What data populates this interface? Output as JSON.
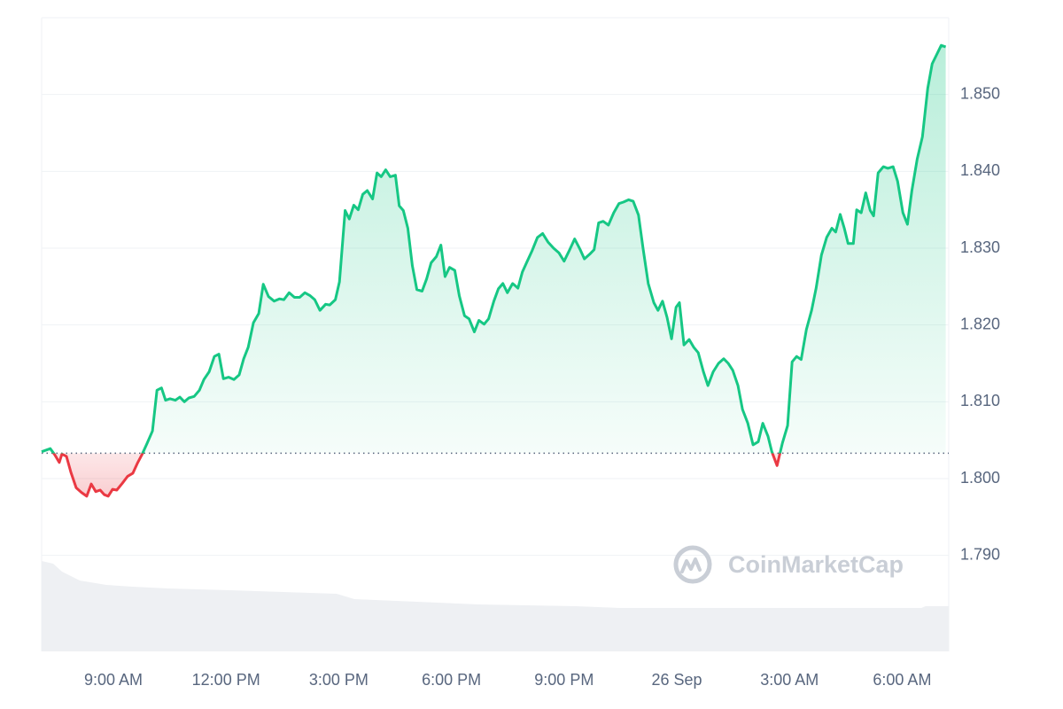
{
  "chart_data": {
    "type": "line",
    "watermark": "CoinMarketCap",
    "up_color": "#16c784",
    "down_color": "#ea3943",
    "grid": true,
    "baseline": 1.8033,
    "xlim": [
      7.09,
      31.24
    ],
    "xticks": [
      {
        "value": 9,
        "label": "9:00 AM"
      },
      {
        "value": 12,
        "label": "12:00 PM"
      },
      {
        "value": 15,
        "label": "3:00 PM"
      },
      {
        "value": 18,
        "label": "6:00 PM"
      },
      {
        "value": 21,
        "label": "9:00 PM"
      },
      {
        "value": 24,
        "label": "26 Sep"
      },
      {
        "value": 27,
        "label": "3:00 AM"
      },
      {
        "value": 30,
        "label": "6:00 AM"
      }
    ],
    "ylim": [
      1.7775,
      1.86
    ],
    "yticks": [
      {
        "value": 1.79,
        "label": "1.790"
      },
      {
        "value": 1.8,
        "label": "1.800"
      },
      {
        "value": 1.81,
        "label": "1.810"
      },
      {
        "value": 1.82,
        "label": "1.820"
      },
      {
        "value": 1.83,
        "label": "1.830"
      },
      {
        "value": 1.84,
        "label": "1.840"
      },
      {
        "value": 1.85,
        "label": "1.850"
      }
    ],
    "x": [
      7.09,
      7.32,
      7.44,
      7.56,
      7.63,
      7.75,
      7.87,
      8.01,
      8.15,
      8.29,
      8.41,
      8.53,
      8.65,
      8.76,
      8.86,
      8.98,
      9.09,
      9.24,
      9.38,
      9.52,
      9.64,
      9.76,
      9.9,
      10.04,
      10.16,
      10.28,
      10.39,
      10.51,
      10.65,
      10.77,
      10.89,
      11.01,
      11.15,
      11.29,
      11.41,
      11.55,
      11.69,
      11.81,
      11.93,
      12.07,
      12.21,
      12.35,
      12.47,
      12.59,
      12.73,
      12.87,
      12.99,
      13.13,
      13.28,
      13.42,
      13.54,
      13.68,
      13.82,
      13.96,
      14.1,
      14.24,
      14.36,
      14.5,
      14.65,
      14.76,
      14.91,
      15.02,
      15.17,
      15.28,
      15.4,
      15.52,
      15.64,
      15.76,
      15.9,
      16.02,
      16.13,
      16.25,
      16.37,
      16.51,
      16.61,
      16.72,
      16.84,
      16.96,
      17.08,
      17.22,
      17.34,
      17.46,
      17.6,
      17.72,
      17.83,
      17.95,
      18.09,
      18.21,
      18.35,
      18.47,
      18.61,
      18.73,
      18.87,
      18.99,
      19.13,
      19.25,
      19.37,
      19.49,
      19.63,
      19.77,
      19.89,
      20.01,
      20.15,
      20.29,
      20.43,
      20.57,
      20.72,
      20.86,
      21.0,
      21.14,
      21.28,
      21.42,
      21.54,
      21.68,
      21.8,
      21.92,
      22.04,
      22.18,
      22.32,
      22.46,
      22.58,
      22.72,
      22.84,
      22.98,
      23.1,
      23.24,
      23.39,
      23.5,
      23.62,
      23.74,
      23.86,
      23.98,
      24.07,
      24.19,
      24.33,
      24.45,
      24.57,
      24.71,
      24.83,
      24.97,
      25.11,
      25.25,
      25.37,
      25.49,
      25.63,
      25.75,
      25.89,
      26.03,
      26.17,
      26.29,
      26.43,
      26.53,
      26.67,
      26.81,
      26.95,
      27.07,
      27.19,
      27.31,
      27.45,
      27.59,
      27.71,
      27.85,
      27.99,
      28.13,
      28.23,
      28.35,
      28.46,
      28.56,
      28.7,
      28.79,
      28.91,
      29.03,
      29.15,
      29.24,
      29.36,
      29.5,
      29.62,
      29.76,
      29.88,
      30.02,
      30.14,
      30.26,
      30.4,
      30.54,
      30.68,
      30.8,
      30.92,
      31.04,
      31.16
    ],
    "values": [
      1.8035,
      1.8039,
      1.8031,
      1.8021,
      1.8032,
      1.8029,
      1.8008,
      1.7988,
      1.7982,
      1.7977,
      1.7993,
      1.7983,
      1.7985,
      1.7979,
      1.7977,
      1.7986,
      1.7985,
      1.7994,
      1.8003,
      1.8007,
      1.802,
      1.8031,
      1.8046,
      1.8062,
      1.8115,
      1.8118,
      1.8102,
      1.8104,
      1.8102,
      1.8106,
      1.81,
      1.8105,
      1.8107,
      1.8115,
      1.8129,
      1.8139,
      1.8159,
      1.8162,
      1.813,
      1.8132,
      1.8129,
      1.8135,
      1.8156,
      1.8171,
      1.8203,
      1.8215,
      1.8253,
      1.8237,
      1.8231,
      1.8234,
      1.8233,
      1.8242,
      1.8236,
      1.8236,
      1.8242,
      1.8238,
      1.8233,
      1.8219,
      1.8227,
      1.8226,
      1.8233,
      1.8256,
      1.8349,
      1.8338,
      1.8356,
      1.835,
      1.837,
      1.8375,
      1.8364,
      1.8398,
      1.8393,
      1.8402,
      1.8393,
      1.8395,
      1.8355,
      1.8349,
      1.8326,
      1.8277,
      1.8246,
      1.8244,
      1.826,
      1.8281,
      1.8289,
      1.8304,
      1.8263,
      1.8275,
      1.8271,
      1.8238,
      1.8212,
      1.8208,
      1.8191,
      1.8206,
      1.8201,
      1.8208,
      1.8231,
      1.8247,
      1.8254,
      1.8242,
      1.8254,
      1.8248,
      1.8269,
      1.8282,
      1.8297,
      1.8314,
      1.8319,
      1.8308,
      1.83,
      1.8294,
      1.8283,
      1.8297,
      1.8312,
      1.8299,
      1.8286,
      1.8292,
      1.8298,
      1.8333,
      1.8335,
      1.833,
      1.8346,
      1.8358,
      1.836,
      1.8363,
      1.8361,
      1.8343,
      1.83,
      1.8254,
      1.8229,
      1.8219,
      1.8231,
      1.821,
      1.8182,
      1.8223,
      1.8229,
      1.8174,
      1.8181,
      1.8171,
      1.8164,
      1.8139,
      1.8121,
      1.8139,
      1.815,
      1.8156,
      1.815,
      1.8141,
      1.8121,
      1.809,
      1.8072,
      1.8044,
      1.8048,
      1.8072,
      1.8055,
      1.8035,
      1.8017,
      1.8046,
      1.8069,
      1.8152,
      1.8159,
      1.8155,
      1.8194,
      1.8219,
      1.8248,
      1.8291,
      1.8314,
      1.8326,
      1.8321,
      1.8344,
      1.8326,
      1.8306,
      1.8306,
      1.835,
      1.8346,
      1.8372,
      1.8349,
      1.8342,
      1.8398,
      1.8406,
      1.8404,
      1.8406,
      1.8387,
      1.8346,
      1.8331,
      1.8375,
      1.8416,
      1.8445,
      1.8508,
      1.854,
      1.8552,
      1.8564,
      1.8562
    ]
  }
}
